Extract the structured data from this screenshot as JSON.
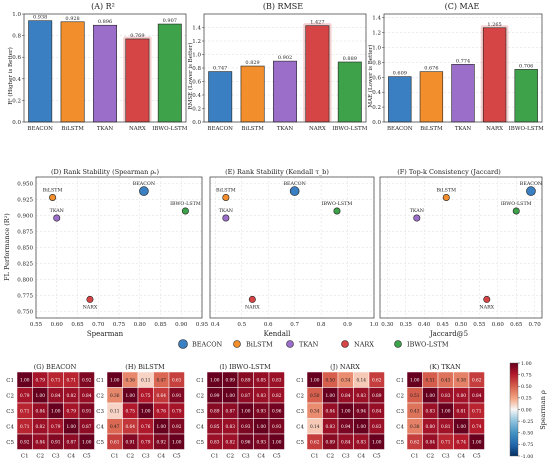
{
  "colors": {
    "BEACON": "#3a7fc1",
    "BiLSTM": "#f28e2b",
    "TKAN": "#9b6fc9",
    "NARX": "#d64545",
    "IBWO-LSTM": "#3ea24a"
  },
  "chart_data": [
    {
      "type": "bar",
      "title": "(A) R²",
      "ylabel": "R² (Higher is Better)",
      "categories": [
        "BEACON",
        "BiLSTM",
        "TKAN",
        "NARX",
        "IBWO-LSTM"
      ],
      "values": [
        0.938,
        0.928,
        0.896,
        0.769,
        0.907
      ],
      "value_labels": [
        "0.938",
        "0.928",
        "0.896",
        "0.769",
        "0.907"
      ],
      "highlight": "NARX",
      "ylim": [
        0,
        1.0
      ],
      "yticks": [
        0.0,
        0.2,
        0.4,
        0.6,
        0.8,
        1.0
      ],
      "ytick_labels": [
        "0.0",
        "0.2",
        "0.4",
        "0.6",
        "0.8",
        "1.0"
      ]
    },
    {
      "type": "bar",
      "title": "(B) RMSE",
      "ylabel": "RMSE (Lower is Better)",
      "categories": [
        "BEACON",
        "BiLSTM",
        "TKAN",
        "NARX",
        "IBWO-LSTM"
      ],
      "values": [
        0.747,
        0.829,
        0.902,
        1.427,
        0.889
      ],
      "value_labels": [
        "0.747",
        "0.829",
        "0.902",
        "1.427",
        "0.889"
      ],
      "highlight": "NARX",
      "ylim": [
        0,
        1.6
      ],
      "yticks": [
        0.0,
        0.2,
        0.4,
        0.6,
        0.8,
        1.0,
        1.2,
        1.4
      ],
      "ytick_labels": [
        "0.0",
        "0.2",
        "0.4",
        "0.6",
        "0.8",
        "1.0",
        "1.2",
        "1.4"
      ]
    },
    {
      "type": "bar",
      "title": "(C) MAE",
      "ylabel": "MAE (Lower is Better)",
      "categories": [
        "BEACON",
        "BiLSTM",
        "TKAN",
        "NARX",
        "IBWO-LSTM"
      ],
      "values": [
        0.609,
        0.676,
        0.774,
        1.265,
        0.706
      ],
      "value_labels": [
        "0.609",
        "0.676",
        "0.774",
        "1.265",
        "0.706"
      ],
      "highlight": "NARX",
      "ylim": [
        0,
        1.45
      ],
      "yticks": [
        0.0,
        0.2,
        0.4,
        0.6,
        0.8,
        1.0,
        1.2,
        1.4
      ],
      "ytick_labels": [
        "0.0",
        "0.2",
        "0.4",
        "0.6",
        "0.8",
        "1.0",
        "1.2",
        "1.4"
      ]
    },
    {
      "type": "scatter",
      "title": "(D) Rank Stability (Spearman ρₛ)",
      "xlabel": "Spearman",
      "ylabel": "FL Performance (R²)",
      "xlim": [
        0.55,
        0.95
      ],
      "ylim": [
        0.74,
        0.96
      ],
      "xticks": [
        0.55,
        0.6,
        0.65,
        0.7,
        0.75,
        0.8,
        0.85,
        0.9,
        0.95
      ],
      "xtick_labels": [
        "0.55",
        "0.60",
        "0.65",
        "0.70",
        "0.75",
        "0.80",
        "0.85",
        "0.90",
        "0.95"
      ],
      "yticks": [
        0.75,
        0.775,
        0.8,
        0.825,
        0.85,
        0.875,
        0.9,
        0.925,
        0.95
      ],
      "ytick_labels": [
        "0.750",
        "0.775",
        "0.800",
        "0.825",
        "0.850",
        "0.875",
        "0.900",
        "0.925",
        "0.950"
      ],
      "points": [
        {
          "label": "BEACON",
          "x": 0.81,
          "y": 0.938
        },
        {
          "label": "BiLSTM",
          "x": 0.59,
          "y": 0.928
        },
        {
          "label": "TKAN",
          "x": 0.6,
          "y": 0.896
        },
        {
          "label": "NARX",
          "x": 0.68,
          "y": 0.769
        },
        {
          "label": "IBWO-LSTM",
          "x": 0.91,
          "y": 0.907
        }
      ]
    },
    {
      "type": "scatter",
      "title": "(E) Rank Stability (Kendall τ_b)",
      "xlabel": "Kendall",
      "ylabel": "",
      "xlim": [
        0.38,
        1.0
      ],
      "ylim": [
        0.74,
        0.96
      ],
      "xticks": [
        0.4,
        0.5,
        0.6,
        0.7,
        0.8,
        0.9,
        1.0
      ],
      "xtick_labels": [
        "0.4",
        "0.5",
        "0.6",
        "0.7",
        "0.8",
        "0.9",
        "1.0"
      ],
      "points": [
        {
          "label": "BEACON",
          "x": 0.7,
          "y": 0.938
        },
        {
          "label": "BiLSTM",
          "x": 0.44,
          "y": 0.928
        },
        {
          "label": "TKAN",
          "x": 0.44,
          "y": 0.896
        },
        {
          "label": "NARX",
          "x": 0.54,
          "y": 0.769
        },
        {
          "label": "IBWO-LSTM",
          "x": 0.86,
          "y": 0.907
        }
      ]
    },
    {
      "type": "scatter",
      "title": "(F) Top-k Consistency (Jaccard)",
      "xlabel": "Jaccard@5",
      "ylabel": "",
      "xlim": [
        0.28,
        0.72
      ],
      "ylim": [
        0.74,
        0.96
      ],
      "xticks": [
        0.3,
        0.35,
        0.4,
        0.45,
        0.5,
        0.55,
        0.6,
        0.65,
        0.7
      ],
      "xtick_labels": [
        "0.30",
        "0.35",
        "0.40",
        "0.45",
        "0.50",
        "0.55",
        "0.60",
        "0.65",
        "0.70"
      ],
      "points": [
        {
          "label": "BEACON",
          "x": 0.69,
          "y": 0.938
        },
        {
          "label": "BiLSTM",
          "x": 0.46,
          "y": 0.928
        },
        {
          "label": "TKAN",
          "x": 0.38,
          "y": 0.896
        },
        {
          "label": "NARX",
          "x": 0.57,
          "y": 0.769
        },
        {
          "label": "IBWO-LSTM",
          "x": 0.65,
          "y": 0.907
        }
      ]
    },
    {
      "type": "heatmap",
      "title": "(G) BEACON",
      "rows": [
        "C1",
        "C2",
        "C3",
        "C4",
        "C5"
      ],
      "cols": [
        "C1",
        "C2",
        "C3",
        "C4",
        "C5"
      ],
      "values": [
        [
          1.0,
          0.79,
          0.71,
          0.71,
          0.92
        ],
        [
          0.79,
          1.0,
          0.84,
          0.82,
          0.84
        ],
        [
          0.71,
          0.84,
          1.0,
          0.79,
          0.91
        ],
        [
          0.71,
          0.82,
          0.79,
          1.0,
          0.87
        ],
        [
          0.92,
          0.84,
          0.91,
          0.87,
          1.0
        ]
      ]
    },
    {
      "type": "heatmap",
      "title": "(H) BiLSTM",
      "rows": [
        "C1",
        "C2",
        "C3",
        "C4",
        "C5"
      ],
      "cols": [
        "C1",
        "C2",
        "C3",
        "C4",
        "C5"
      ],
      "values": [
        [
          1.0,
          0.36,
          0.11,
          0.47,
          0.61
        ],
        [
          0.36,
          1.0,
          0.75,
          0.64,
          0.91
        ],
        [
          0.11,
          0.75,
          1.0,
          0.76,
          0.79
        ],
        [
          0.47,
          0.64,
          0.76,
          1.0,
          0.92
        ],
        [
          0.61,
          0.91,
          0.79,
          0.92,
          1.0
        ]
      ]
    },
    {
      "type": "heatmap",
      "title": "(I) IBWO-LSTM",
      "rows": [
        "C1",
        "C2",
        "C3",
        "C4",
        "C5"
      ],
      "cols": [
        "C1",
        "C2",
        "C3",
        "C4",
        "C5"
      ],
      "values": [
        [
          1.0,
          0.99,
          0.89,
          0.85,
          0.83
        ],
        [
          0.99,
          1.0,
          0.87,
          0.83,
          0.82
        ],
        [
          0.89,
          0.87,
          1.0,
          0.93,
          0.96
        ],
        [
          0.85,
          0.83,
          0.93,
          1.0,
          0.93
        ],
        [
          0.83,
          0.82,
          0.96,
          0.93,
          1.0
        ]
      ]
    },
    {
      "type": "heatmap",
      "title": "(J) NARX",
      "rows": [
        "C1",
        "C2",
        "C3",
        "C4",
        "C5"
      ],
      "cols": [
        "C1",
        "C2",
        "C3",
        "C4",
        "C5"
      ],
      "values": [
        [
          1.0,
          0.5,
          0.34,
          0.14,
          0.62
        ],
        [
          0.5,
          1.0,
          0.84,
          0.83,
          0.89
        ],
        [
          0.34,
          0.84,
          1.0,
          0.94,
          0.84
        ],
        [
          0.14,
          0.83,
          0.94,
          1.0,
          0.83
        ],
        [
          0.62,
          0.89,
          0.84,
          0.83,
          1.0
        ]
      ]
    },
    {
      "type": "heatmap",
      "title": "(K) TKAN",
      "rows": [
        "C1",
        "C2",
        "C3",
        "C4",
        "C5"
      ],
      "cols": [
        "C1",
        "C2",
        "C3",
        "C4",
        "C5"
      ],
      "values": [
        [
          1.0,
          0.51,
          0.43,
          0.38,
          0.62
        ],
        [
          0.51,
          1.0,
          0.83,
          0.8,
          0.84
        ],
        [
          0.43,
          0.83,
          1.0,
          0.81,
          0.71
        ],
        [
          0.38,
          0.8,
          0.81,
          1.0,
          0.74
        ],
        [
          0.62,
          0.84,
          0.71,
          0.74,
          1.0
        ]
      ]
    }
  ],
  "legend": {
    "entries": [
      "BEACON",
      "BiLSTM",
      "TKAN",
      "NARX",
      "IBWO-LSTM"
    ]
  },
  "colorbar": {
    "label": "Spearman ρ",
    "ticks": [
      1.0,
      0.75,
      0.5,
      0.25,
      0.0,
      -0.25,
      -0.5,
      -0.75,
      -1.0
    ],
    "tick_labels": [
      "1.00",
      "0.75",
      "0.50",
      "0.25",
      "0.00",
      "-0.25",
      "-0.50",
      "-0.75",
      "-1.00"
    ]
  }
}
